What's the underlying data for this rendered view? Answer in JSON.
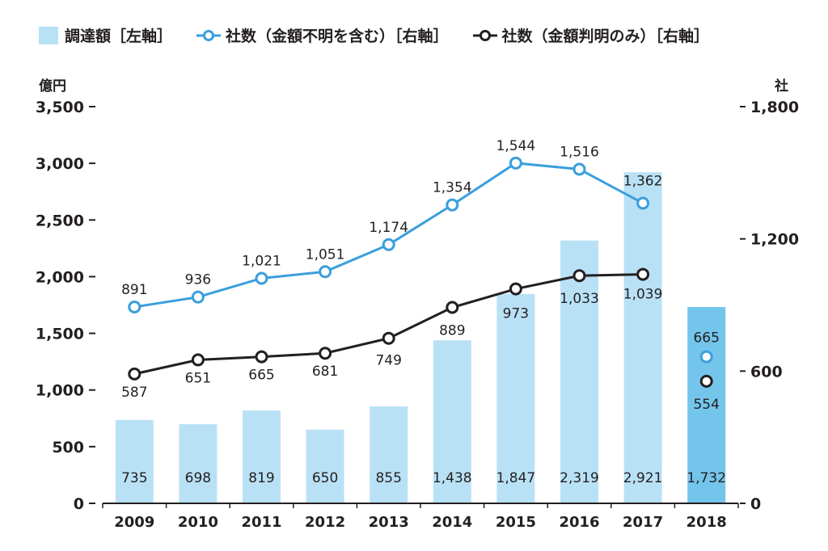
{
  "legend": {
    "bar_label": "調達額［左軸］",
    "line1_label": "社数（金額不明を含む）［右軸］",
    "line2_label": "社数（金額判明のみ）［右軸］"
  },
  "chart_data": {
    "type": "bar",
    "categories": [
      "2009",
      "2010",
      "2011",
      "2012",
      "2013",
      "2014",
      "2015",
      "2016",
      "2017",
      "2018"
    ],
    "left_axis": {
      "unit": "億円",
      "ylim": [
        0,
        3500
      ],
      "ticks": [
        "0",
        "500",
        "1,000",
        "1,500",
        "2,000",
        "2,500",
        "3,000",
        "3,500"
      ]
    },
    "right_axis": {
      "unit": "社",
      "ylim": [
        0,
        1800
      ],
      "ticks": [
        "0",
        "600",
        "1,200",
        "1,800"
      ]
    },
    "series": [
      {
        "name": "調達額［左軸］",
        "type": "bar",
        "axis": "left",
        "values": [
          735,
          698,
          819,
          650,
          855,
          1438,
          1847,
          2319,
          2921,
          1732
        ],
        "labels": [
          "735",
          "698",
          "819",
          "650",
          "855",
          "1,438",
          "1,847",
          "2,319",
          "2,921",
          "1,732"
        ],
        "color": "#b9e1f6",
        "highlight_color": "#74c5ec"
      },
      {
        "name": "社数（金額不明を含む）［右軸］",
        "type": "line",
        "axis": "right",
        "values": [
          891,
          936,
          1021,
          1051,
          1174,
          1354,
          1544,
          1516,
          1362,
          665
        ],
        "labels": [
          "891",
          "936",
          "1,021",
          "1,051",
          "1,174",
          "1,354",
          "1,544",
          "1,516",
          "1,362",
          "665"
        ],
        "color": "#3a9fdd"
      },
      {
        "name": "社数（金額判明のみ）［右軸］",
        "type": "line",
        "axis": "right",
        "values": [
          587,
          651,
          665,
          681,
          749,
          889,
          973,
          1033,
          1039,
          554
        ],
        "labels": [
          "587",
          "651",
          "665",
          "681",
          "749",
          "889",
          "973",
          "1,033",
          "1,039",
          "554"
        ],
        "color": "#231f20"
      }
    ],
    "grid": false,
    "legend_position": "top-left"
  }
}
